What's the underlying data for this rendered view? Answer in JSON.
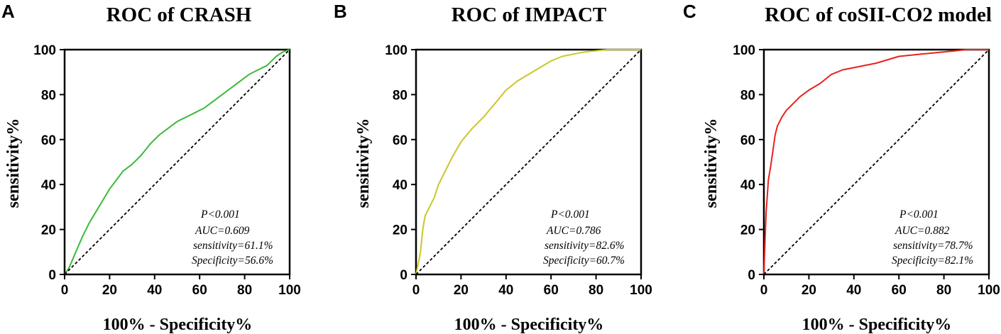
{
  "chart_data": [
    {
      "type": "line",
      "panel_label": "A",
      "title": "ROC of CRASH",
      "xlabel": "100% - Specificity%",
      "ylabel": "sensitivity%",
      "xlim": [
        0,
        100
      ],
      "ylim": [
        0,
        100
      ],
      "xticks": [
        0,
        20,
        40,
        60,
        80,
        100
      ],
      "yticks": [
        0,
        20,
        40,
        60,
        80,
        100
      ],
      "series": [
        {
          "name": "CRASH",
          "color": "#3cb93c",
          "x": [
            0,
            2,
            5,
            8,
            11,
            14,
            17,
            20,
            23,
            26,
            30,
            34,
            38,
            42,
            46,
            50,
            54,
            58,
            62,
            66,
            70,
            74,
            78,
            82,
            86,
            90,
            94,
            97,
            100
          ],
          "y": [
            0,
            3,
            10,
            17,
            23,
            28,
            33,
            38,
            42,
            46,
            49,
            53,
            58,
            62,
            65,
            68,
            70,
            72,
            74,
            77,
            80,
            83,
            86,
            89,
            91,
            93,
            97,
            99,
            100
          ]
        },
        {
          "name": "Reference line",
          "color": "#000000",
          "dashed": true,
          "x": [
            0,
            100
          ],
          "y": [
            0,
            100
          ]
        }
      ],
      "annotations": [
        "P<0.001",
        "AUC=0.609",
        "sensitivity=61.1%",
        "Specificity=56.6%"
      ]
    },
    {
      "type": "line",
      "panel_label": "B",
      "title": "ROC of IMPACT",
      "xlabel": "100% - Specificity%",
      "ylabel": "sensitivity%",
      "xlim": [
        0,
        100
      ],
      "ylim": [
        0,
        100
      ],
      "xticks": [
        0,
        20,
        40,
        60,
        80,
        100
      ],
      "yticks": [
        0,
        20,
        40,
        60,
        80,
        100
      ],
      "series": [
        {
          "name": "IMPACT",
          "color": "#c8c828",
          "x": [
            0,
            1,
            2,
            3,
            4,
            6,
            8,
            10,
            13,
            16,
            20,
            25,
            30,
            35,
            40,
            45,
            50,
            55,
            60,
            65,
            70,
            75,
            80,
            85,
            90,
            95,
            100
          ],
          "y": [
            0,
            5,
            10,
            20,
            26,
            30,
            34,
            40,
            46,
            52,
            59,
            65,
            70,
            76,
            82,
            86,
            89,
            92,
            95,
            97,
            98,
            99,
            99.5,
            100,
            100,
            100,
            100
          ]
        },
        {
          "name": "Reference line",
          "color": "#000000",
          "dashed": true,
          "x": [
            0,
            100
          ],
          "y": [
            0,
            100
          ]
        }
      ],
      "annotations": [
        "P<0.001",
        "AUC=0.786",
        "sensitivity=82.6%",
        "Specificity=60.7%"
      ]
    },
    {
      "type": "line",
      "panel_label": "C",
      "title": "ROC of coSII-CO2 model",
      "xlabel": "100% - Specificity%",
      "ylabel": "sensitivity%",
      "xlim": [
        0,
        100
      ],
      "ylim": [
        0,
        100
      ],
      "xticks": [
        0,
        20,
        40,
        60,
        80,
        100
      ],
      "yticks": [
        0,
        20,
        40,
        60,
        80,
        100
      ],
      "series": [
        {
          "name": "coSII-CO2 model",
          "color": "#e8221c",
          "x": [
            0,
            0.5,
            1,
            1.5,
            2,
            3,
            4,
            5,
            6,
            8,
            10,
            13,
            16,
            20,
            25,
            30,
            35,
            40,
            50,
            60,
            70,
            80,
            90,
            100
          ],
          "y": [
            0,
            15,
            28,
            35,
            42,
            48,
            55,
            62,
            66,
            70,
            73,
            76,
            79,
            82,
            85,
            89,
            91,
            92,
            94,
            97,
            98,
            99,
            100,
            100
          ]
        },
        {
          "name": "Reference line",
          "color": "#000000",
          "dashed": true,
          "x": [
            0,
            100
          ],
          "y": [
            0,
            100
          ]
        }
      ],
      "annotations": [
        "P<0.001",
        "AUC=0.882",
        "sensitivity=78.7%",
        "Specificity=82.1%"
      ]
    }
  ]
}
